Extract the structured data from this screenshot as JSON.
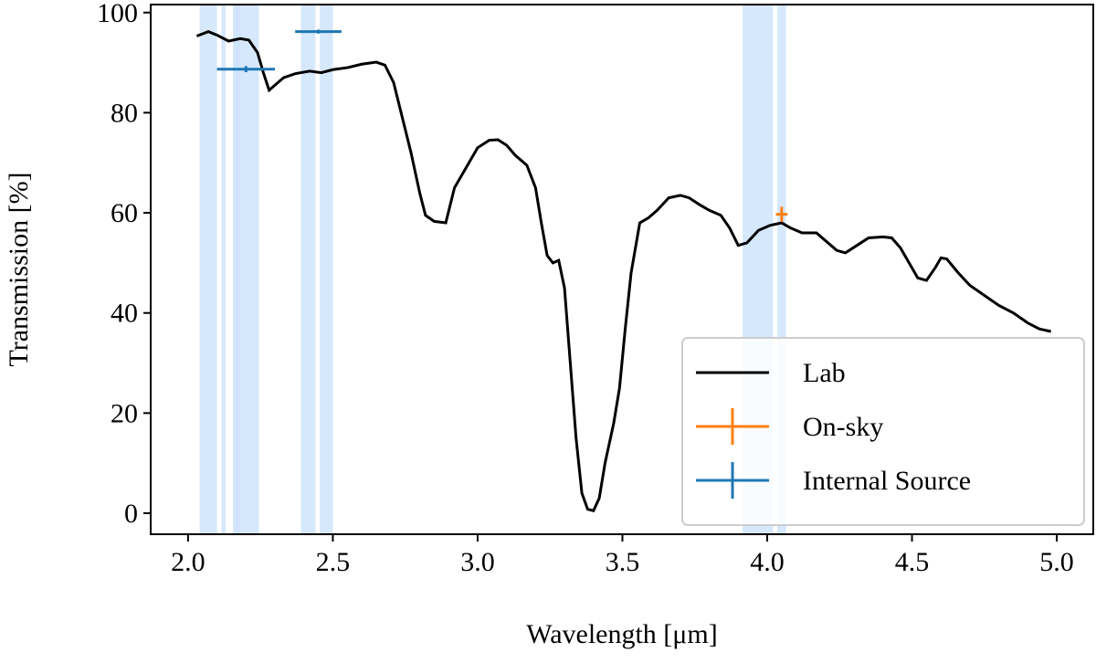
{
  "chart_data": {
    "type": "line",
    "xlabel": "Wavelength [μm]",
    "ylabel": "Transmission [%]",
    "xlim": [
      1.871,
      5.126
    ],
    "ylim": [
      -4.2,
      101.6
    ],
    "xticks": [
      {
        "value": 2,
        "label": "2.0"
      },
      {
        "value": 2.5,
        "label": "2.5"
      },
      {
        "value": 3,
        "label": "3.0"
      },
      {
        "value": 3.5,
        "label": "3.5"
      },
      {
        "value": 4,
        "label": "4.0"
      },
      {
        "value": 4.5,
        "label": "4.5"
      },
      {
        "value": 5,
        "label": "5.0"
      }
    ],
    "yticks": [
      0,
      20,
      40,
      60,
      80,
      100
    ],
    "legend": "lower right",
    "band_color": "#cfe4fb",
    "bands": [
      [
        2.04,
        2.1
      ],
      [
        2.115,
        2.13
      ],
      [
        2.155,
        2.245
      ],
      [
        2.16,
        2.18
      ],
      [
        2.39,
        2.44
      ],
      [
        2.455,
        2.5
      ],
      [
        3.915,
        4.02
      ],
      [
        4.035,
        4.065
      ]
    ],
    "series": [
      {
        "name": "Lab",
        "color": "#000000",
        "x": [
          2.03,
          2.07,
          2.1,
          2.14,
          2.18,
          2.21,
          2.24,
          2.26,
          2.28,
          2.3,
          2.33,
          2.37,
          2.42,
          2.46,
          2.5,
          2.55,
          2.6,
          2.65,
          2.68,
          2.71,
          2.74,
          2.77,
          2.8,
          2.82,
          2.85,
          2.89,
          2.92,
          2.96,
          3.0,
          3.04,
          3.07,
          3.1,
          3.13,
          3.17,
          3.2,
          3.22,
          3.24,
          3.26,
          3.28,
          3.3,
          3.32,
          3.34,
          3.36,
          3.38,
          3.4,
          3.42,
          3.44,
          3.47,
          3.49,
          3.51,
          3.53,
          3.56,
          3.59,
          3.62,
          3.66,
          3.7,
          3.73,
          3.77,
          3.8,
          3.84,
          3.87,
          3.9,
          3.93,
          3.97,
          4.01,
          4.05,
          4.08,
          4.12,
          4.17,
          4.21,
          4.24,
          4.27,
          4.31,
          4.35,
          4.4,
          4.43,
          4.46,
          4.49,
          4.52,
          4.55,
          4.58,
          4.6,
          4.62,
          4.66,
          4.7,
          4.75,
          4.8,
          4.85,
          4.9,
          4.94,
          4.98
        ],
        "values": [
          95.3,
          96.2,
          95.5,
          94.3,
          94.8,
          94.5,
          92,
          88,
          84.5,
          85.5,
          87,
          87.8,
          88.3,
          88.0,
          88.6,
          89,
          89.7,
          90.1,
          89.5,
          86,
          79,
          72,
          64,
          59.5,
          58.3,
          58,
          65,
          69,
          73,
          74.5,
          74.6,
          73.5,
          71.5,
          69.5,
          65,
          58,
          51.5,
          50,
          50.5,
          45,
          30,
          15,
          4,
          0.8,
          0.5,
          3,
          10,
          18,
          25,
          37,
          48,
          58,
          59,
          60.5,
          63,
          63.5,
          63,
          61.5,
          60.5,
          59.5,
          57,
          53.5,
          54,
          56.5,
          57.5,
          58,
          57,
          56,
          56,
          54,
          52.5,
          52,
          53.5,
          55,
          55.2,
          55,
          53,
          50,
          47,
          46.5,
          49,
          51,
          50.8,
          48,
          45.5,
          43.5,
          41.5,
          40,
          38,
          36.8,
          36.3
        ]
      },
      {
        "name": "On-sky",
        "color": "#ff7f0e",
        "x": [
          4.05
        ],
        "values": [
          59.7
        ],
        "xerr": [
          0.02
        ],
        "yerr": [
          1.5
        ]
      },
      {
        "name": "Internal Source",
        "color": "#1f77b4",
        "x": [
          2.2,
          2.45
        ],
        "values": [
          88.7,
          96.2
        ],
        "xerr": [
          0.1,
          0.08
        ],
        "yerr": [
          0.6,
          0.4
        ]
      }
    ]
  }
}
